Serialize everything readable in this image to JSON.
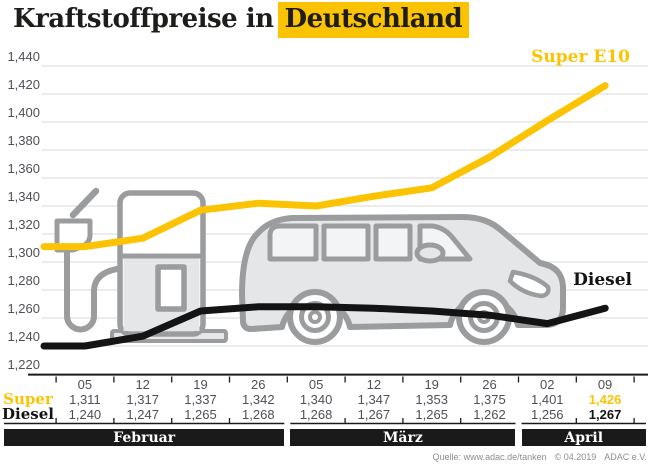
{
  "title": {
    "prefix": "Kraftstoffpreise in",
    "highlight": "Deutschland"
  },
  "colors": {
    "accent_yellow": "#FCC303",
    "diesel_black": "#141414",
    "grid_line": "#d9d9db",
    "axis_text": "#4e5055",
    "table_line": "#1a1a1a",
    "illustration_stroke": "#9b9c9e",
    "illustration_fill": "#e5e6e8",
    "month_bar_bg": "#1a1a1a",
    "month_bar_text": "#ffffff",
    "source_text": "#8d8d8d"
  },
  "chart_data": {
    "type": "line",
    "title": "Kraftstoffpreise in Deutschland",
    "y_axis": {
      "min": 1220,
      "max": 1440,
      "step": 20,
      "format": "decimal-comma"
    },
    "grid": true,
    "x_categories": [
      "05",
      "12",
      "19",
      "26",
      "05",
      "12",
      "19",
      "26",
      "02",
      "09"
    ],
    "month_groups": [
      {
        "label": "Februar",
        "cols": 4
      },
      {
        "label": "März",
        "cols": 4
      },
      {
        "label": "April",
        "cols": 2
      }
    ],
    "series": [
      {
        "name": "Super E10",
        "color": "#FCC303",
        "values": [
          1311,
          1317,
          1337,
          1342,
          1340,
          1347,
          1353,
          1375,
          1401,
          1426
        ]
      },
      {
        "name": "Diesel",
        "color": "#141414",
        "values": [
          1240,
          1247,
          1265,
          1268,
          1268,
          1267,
          1265,
          1262,
          1256,
          1267
        ]
      }
    ],
    "legend_position": "inline-end-labels"
  },
  "table": {
    "row_headers": [
      "Super",
      "Diesel"
    ],
    "highlight_last_column": true
  },
  "source": {
    "quelle": "Quelle: www.adac.de/tanken",
    "copyright": "© 04.2019",
    "org": "ADAC e.V."
  }
}
